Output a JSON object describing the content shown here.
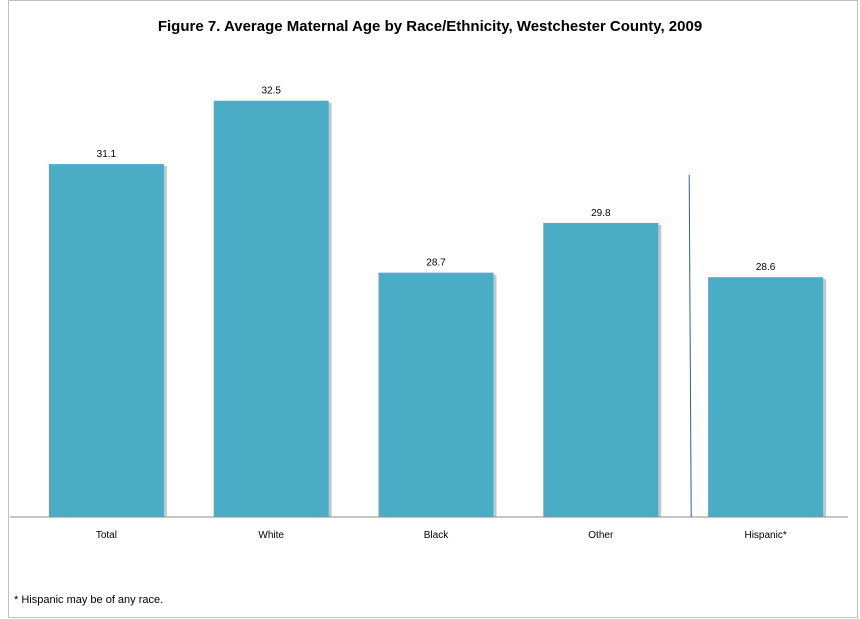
{
  "chart_data": {
    "type": "bar",
    "title": "Figure 7. Average Maternal Age by Race/Ethnicity, Westchester County, 2009",
    "categories": [
      "Total",
      "White",
      "Black",
      "Other",
      "Hispanic*"
    ],
    "values": [
      31.1,
      32.5,
      28.7,
      29.8,
      28.6
    ],
    "data_labels": [
      "31.1",
      "32.5",
      "28.7",
      "29.8",
      "28.6"
    ],
    "xlabel": "",
    "ylabel": "",
    "ylim": [
      23.3,
      33.4
    ],
    "grid": false,
    "legend": "none",
    "separator_between": [
      "Other",
      "Hispanic*"
    ],
    "colors": {
      "bar": "#4bacc6",
      "bar_shadow": "#c6c6c6",
      "axis": "#8c8c8c",
      "separator": "#2e5f9e"
    }
  },
  "footnote": "* Hispanic may be of any race."
}
